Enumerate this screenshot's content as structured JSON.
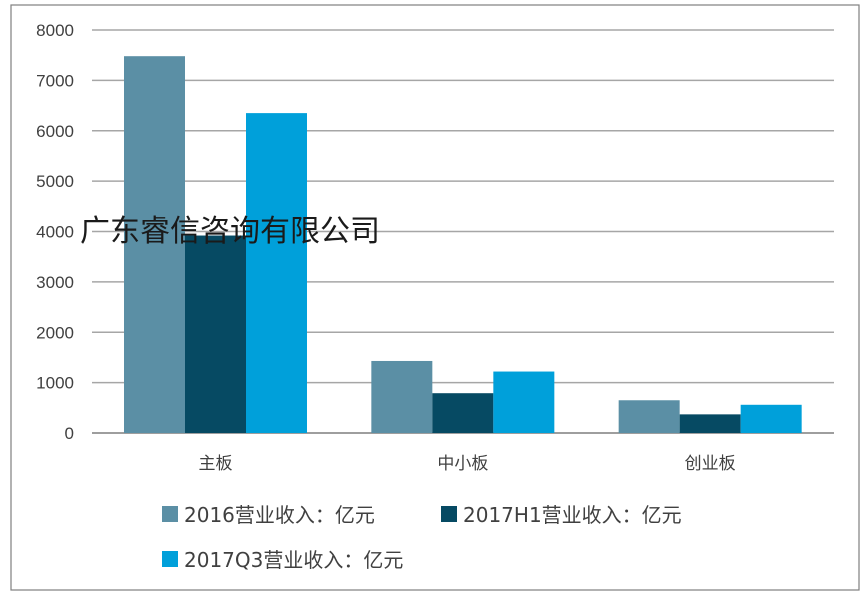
{
  "watermark": "广东睿信咨询有限公司",
  "colors": {
    "series_2016": "#5b8fa5",
    "series_2017H1": "#064a63",
    "series_2017Q3": "#00a0da",
    "grid": "#a6a6a6",
    "frame": "#7f7f7f"
  },
  "chart_data": {
    "type": "bar",
    "categories": [
      "主板",
      "中小板",
      "创业板"
    ],
    "series": [
      {
        "name": "2016营业收入：亿元",
        "values": [
          7480,
          1430,
          650
        ]
      },
      {
        "name": "2017H1营业收入：亿元",
        "values": [
          3920,
          790,
          370
        ]
      },
      {
        "name": "2017Q3营业收入：亿元",
        "values": [
          6350,
          1220,
          560
        ]
      }
    ],
    "y_ticks": [
      "0",
      "1000",
      "2000",
      "3000",
      "4000",
      "5000",
      "6000",
      "7000",
      "8000"
    ],
    "ylim": [
      0,
      8000
    ],
    "grid": true,
    "legend_position": "bottom"
  }
}
